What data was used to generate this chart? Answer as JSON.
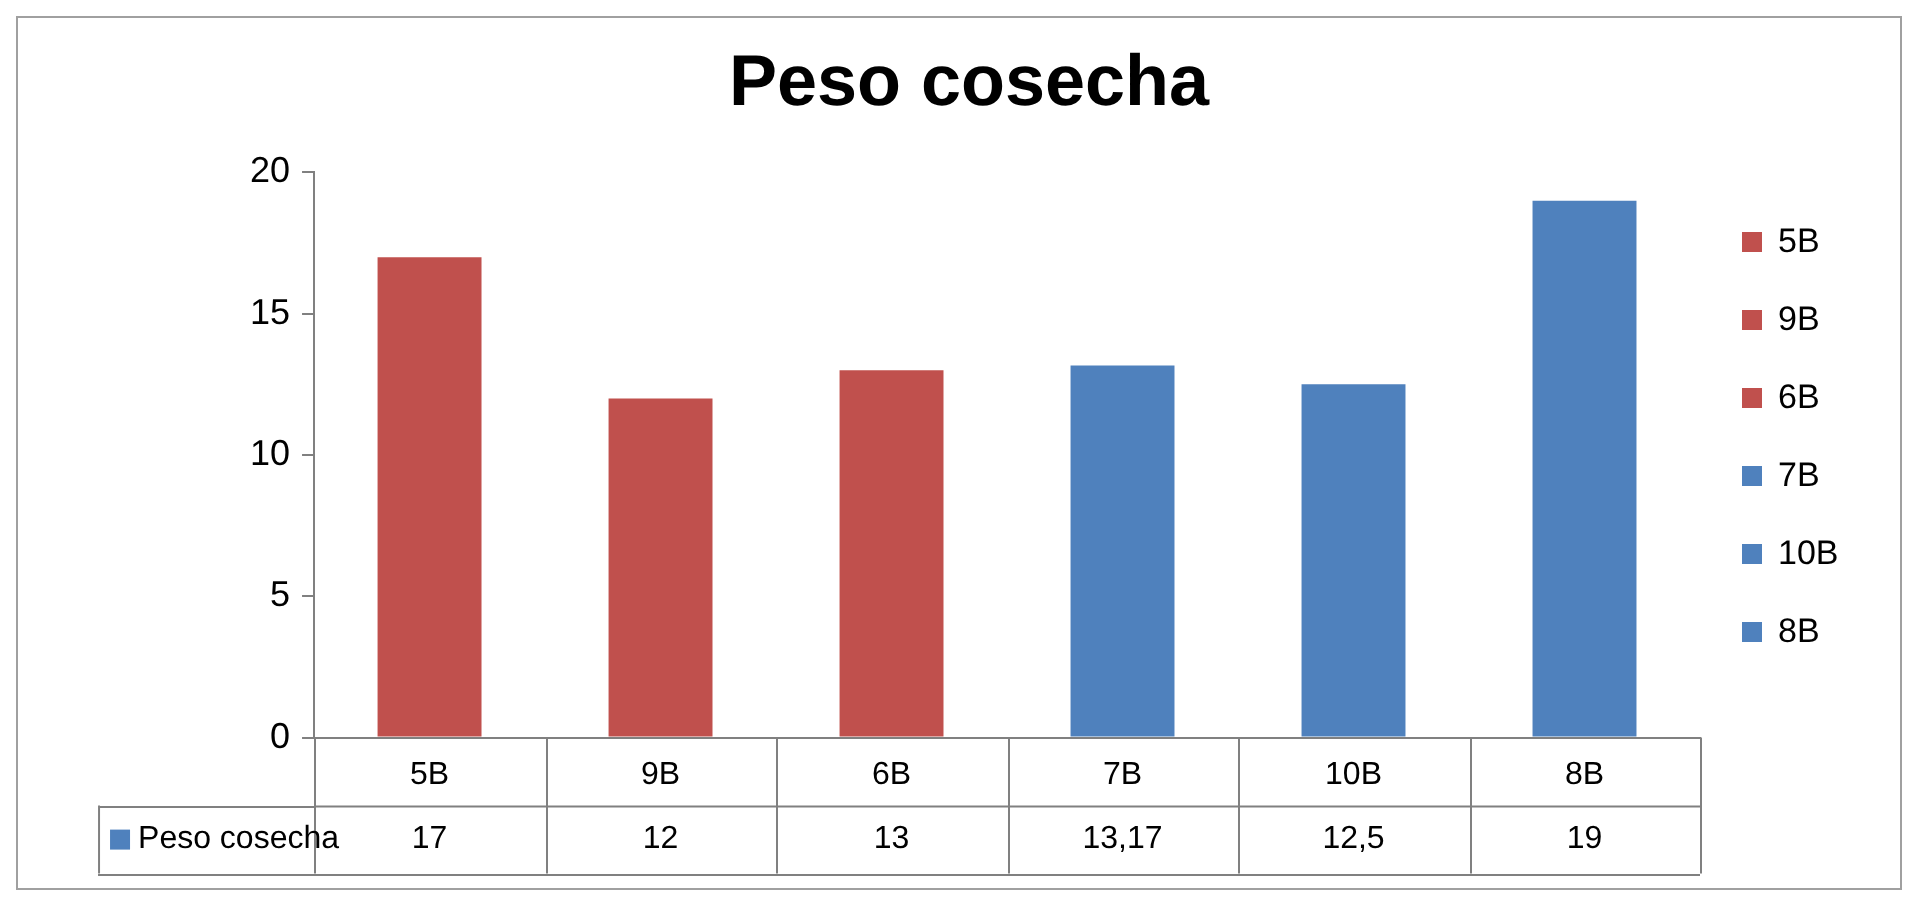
{
  "chart_data": {
    "type": "bar",
    "title": "Peso cosecha",
    "categories": [
      "5B",
      "9B",
      "6B",
      "7B",
      "10B",
      "8B"
    ],
    "series": [
      {
        "name": "Peso cosecha",
        "color": "#4f81bd",
        "colors": [
          "#c0504d",
          "#c0504d",
          "#c0504d",
          "#4f81bd",
          "#4f81bd",
          "#4f81bd"
        ],
        "values": [
          17,
          12,
          13,
          13.17,
          12.5,
          19
        ],
        "value_labels": [
          "17",
          "12",
          "13",
          "13,17",
          "12,5",
          "19"
        ]
      }
    ],
    "ylim": [
      0,
      20
    ],
    "yticks": [
      0,
      5,
      10,
      15,
      20
    ],
    "grid": false,
    "legend": "bottom left"
  }
}
